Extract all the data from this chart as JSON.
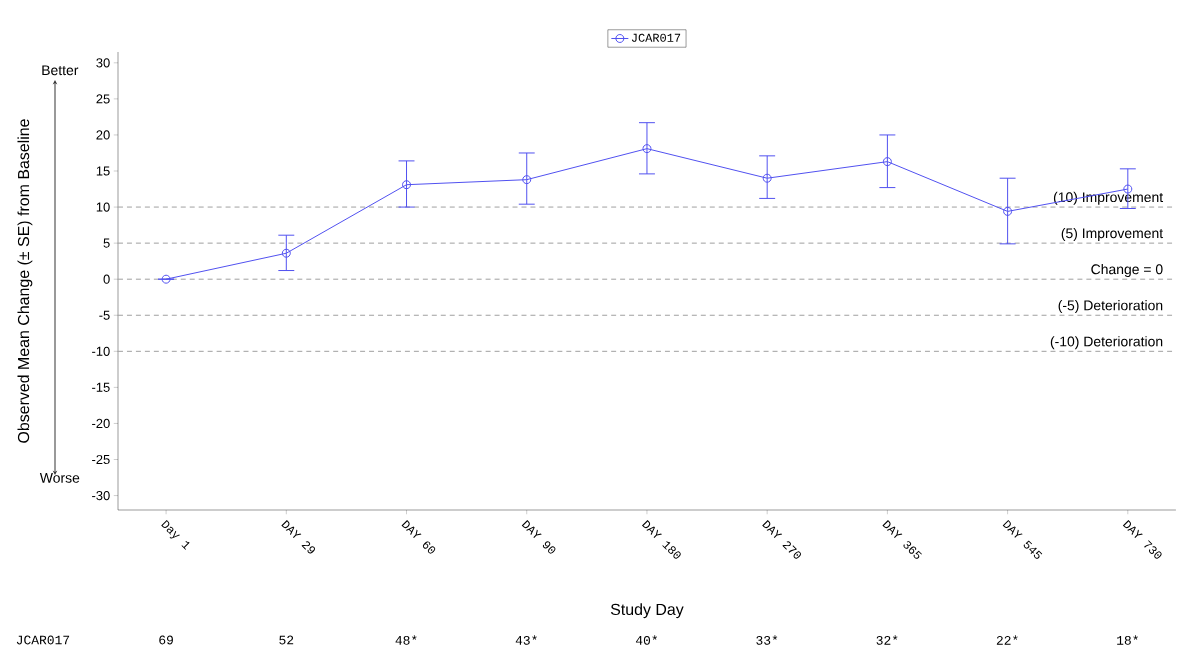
{
  "chart_data": {
    "type": "line",
    "xlabel": "Study Day",
    "ylabel": "Observed Mean Change (± SE) from Baseline",
    "categories": [
      "Day 1",
      "DAY 29",
      "DAY 60",
      "DAY 90",
      "DAY 180",
      "DAY 270",
      "DAY 365",
      "DAY 545",
      "DAY 730"
    ],
    "series": [
      {
        "name": "JCAR017",
        "color": "#5050f0",
        "values": [
          0,
          3.6,
          13.1,
          13.8,
          18.1,
          14.0,
          16.3,
          9.4,
          12.5
        ],
        "errors": [
          null,
          [
            1.2,
            6.1
          ],
          [
            10.0,
            16.4
          ],
          [
            10.4,
            17.5
          ],
          [
            14.6,
            21.7
          ],
          [
            11.2,
            17.1
          ],
          [
            12.7,
            20.0
          ],
          [
            4.9,
            14.0
          ],
          [
            9.8,
            15.3
          ]
        ]
      }
    ],
    "ylim": [
      -32,
      31.5
    ],
    "yticks": [
      -30,
      -25,
      -20,
      -15,
      -10,
      -5,
      0,
      5,
      10,
      15,
      20,
      25,
      30
    ],
    "ref_lines": [
      {
        "axis": "y",
        "value": 10,
        "label": "(10) Improvement",
        "color": "#a0a0a0",
        "line_style": "dashed"
      },
      {
        "axis": "y",
        "value": 5,
        "label": "(5) Improvement",
        "color": "#a0a0a0",
        "line_style": "dashed"
      },
      {
        "axis": "y",
        "value": 0,
        "label": "Change = 0",
        "color": "#a0a0a0",
        "line_style": "dashed"
      },
      {
        "axis": "y",
        "value": -5,
        "label": "(-5) Deterioration",
        "color": "#a0a0a0",
        "line_style": "dashed"
      },
      {
        "axis": "y",
        "value": -10,
        "label": "(-10) Deterioration",
        "color": "#a0a0a0",
        "line_style": "dashed"
      }
    ],
    "annotations": [
      "Better",
      "Worse",
      "JCAR017",
      "69",
      "52",
      "48*",
      "43*",
      "40*",
      "33*",
      "32*",
      "22*",
      "18*"
    ],
    "marker": "circle",
    "line_style": "solid",
    "legend": "top"
  }
}
